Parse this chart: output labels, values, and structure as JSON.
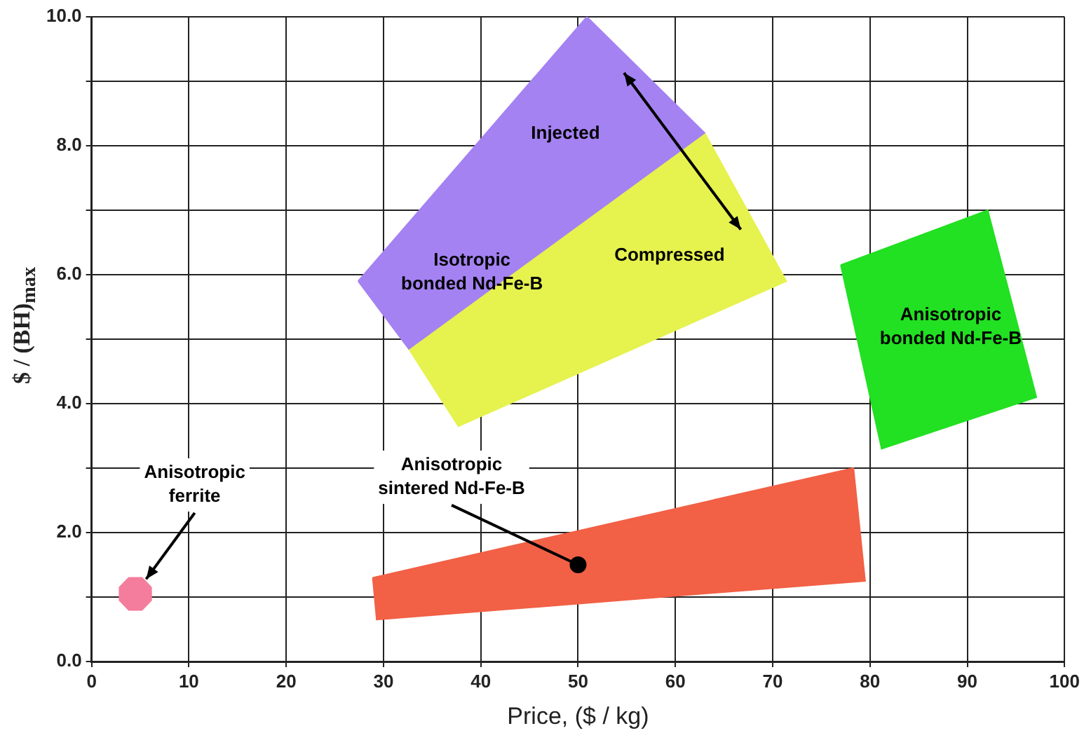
{
  "chart_data": {
    "type": "area",
    "xlabel": "Price, ($ / kg)",
    "ylabel": "$ / (BH)$_{max}$",
    "xlim": [
      0,
      100
    ],
    "xticks": [
      0,
      10,
      20,
      30,
      40,
      50,
      60,
      70,
      80,
      90,
      100
    ],
    "ylim": [
      0,
      10
    ],
    "yticks": [
      {
        "value": 0,
        "label": "0.0"
      },
      {
        "value": 1,
        "label": null
      },
      {
        "value": 2,
        "label": "2.0"
      },
      {
        "value": 3,
        "label": null
      },
      {
        "value": 4,
        "label": "4.0"
      },
      {
        "value": 5,
        "label": null
      },
      {
        "value": 6,
        "label": "6.0"
      },
      {
        "value": 7,
        "label": null
      },
      {
        "value": 8,
        "label": "8.0"
      },
      {
        "value": 9,
        "label": null
      },
      {
        "value": 10,
        "label": "10.0"
      }
    ],
    "grid": true,
    "legend": false,
    "series": [
      {
        "name": "Injected",
        "color": "#a482f2",
        "x": [
          27.4,
          50.9,
          63.0,
          32.6
        ],
        "values": [
          5.9,
          10.0,
          8.2,
          4.85
        ]
      },
      {
        "name": "Compressed",
        "color": "#e6f24e",
        "x": [
          32.6,
          63.0,
          71.4,
          37.7
        ],
        "values": [
          4.85,
          8.2,
          5.9,
          3.65
        ]
      },
      {
        "name": "Anisotropic\nbonded Nd-Fe-B",
        "color": "#22e022",
        "x": [
          77.0,
          92.1,
          97.1,
          81.2
        ],
        "values": [
          6.15,
          7.0,
          4.1,
          3.3
        ]
      },
      {
        "name": "Anisotropic\nsintered Nd-Fe-B",
        "color": "#f26046",
        "x": [
          28.9,
          78.3,
          79.5,
          29.3
        ],
        "values": [
          1.3,
          3.0,
          1.25,
          0.65
        ]
      },
      {
        "name": "Anisotropic\nferrite",
        "color": "#f47c9c",
        "x": [
          6.13,
          5.17,
          3.83,
          2.87,
          2.87,
          3.83,
          5.17,
          6.13
        ],
        "values": [
          1.15,
          1.3,
          1.3,
          1.15,
          0.95,
          0.8,
          0.8,
          0.95
        ]
      },
      {
        "type": "scatter",
        "marker": "circle",
        "color": "#000000",
        "x": [
          50
        ],
        "values": [
          1.5
        ]
      }
    ],
    "annotations": [
      "Isotropic\nbonded Nd-Fe-B"
    ]
  }
}
